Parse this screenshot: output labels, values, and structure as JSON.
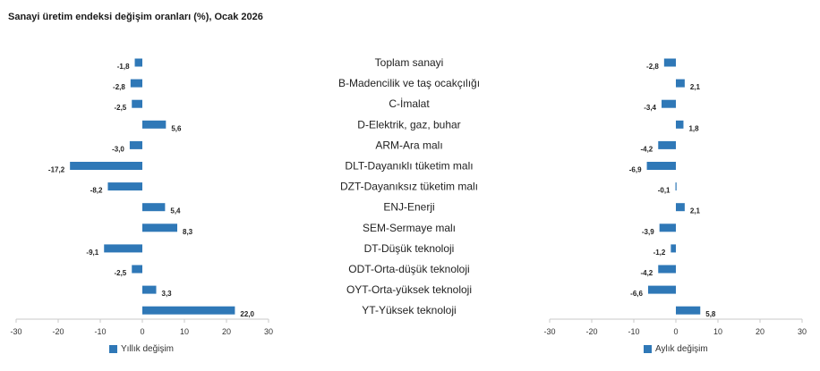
{
  "title": "Sanayi üretim endeksi değişim oranları (%), Ocak 2026",
  "categories": [
    "Toplam sanayi",
    "B-Madencilik ve taş ocakçılığı",
    "C-İmalat",
    "D-Elektrik, gaz, buhar",
    "ARM-Ara malı",
    "DLT-Dayanıklı tüketim malı",
    "DZT-Dayanıksız tüketim malı",
    "ENJ-Enerji",
    "SEM-Sermaye malı",
    "DT-Düşük teknoloji",
    "ODT-Orta-düşük teknoloji",
    "OYT-Orta-yüksek teknoloji",
    "YT-Yüksek teknoloji"
  ],
  "colors": {
    "bar": "#2f78b7",
    "axis": "#c8c8c8",
    "text": "#222222"
  },
  "chart_data": [
    {
      "type": "bar",
      "orientation": "horizontal",
      "categories": [
        "Toplam sanayi",
        "B-Madencilik ve taş ocakçılığı",
        "C-İmalat",
        "D-Elektrik, gaz, buhar",
        "ARM-Ara malı",
        "DLT-Dayanıklı tüketim malı",
        "DZT-Dayanıksız tüketim malı",
        "ENJ-Enerji",
        "SEM-Sermaye malı",
        "DT-Düşük teknoloji",
        "ODT-Orta-düşük teknoloji",
        "OYT-Orta-yüksek teknoloji",
        "YT-Yüksek teknoloji"
      ],
      "values": [
        -1.8,
        -2.8,
        -2.5,
        5.6,
        -3.0,
        -17.2,
        -8.2,
        5.4,
        8.3,
        -9.1,
        -2.5,
        3.3,
        22.0
      ],
      "value_labels": [
        "-1,8",
        "-2,8",
        "-2,5",
        "5,6",
        "-3,0",
        "-17,2",
        "-8,2",
        "5,4",
        "8,3",
        "-9,1",
        "-2,5",
        "3,3",
        "22,0"
      ],
      "series_name": "Yıllık değişim",
      "xlim": [
        -30,
        30
      ],
      "xticks": [
        -30,
        -20,
        -10,
        0,
        10,
        20,
        30
      ],
      "legend_position": "bottom-left",
      "grid": false
    },
    {
      "type": "bar",
      "orientation": "horizontal",
      "categories": [
        "Toplam sanayi",
        "B-Madencilik ve taş ocakçılığı",
        "C-İmalat",
        "D-Elektrik, gaz, buhar",
        "ARM-Ara malı",
        "DLT-Dayanıklı tüketim malı",
        "DZT-Dayanıksız tüketim malı",
        "ENJ-Enerji",
        "SEM-Sermaye malı",
        "DT-Düşük teknoloji",
        "ODT-Orta-düşük teknoloji",
        "OYT-Orta-yüksek teknoloji",
        "YT-Yüksek teknoloji"
      ],
      "values": [
        -2.8,
        2.1,
        -3.4,
        1.8,
        -4.2,
        -6.9,
        -0.1,
        2.1,
        -3.9,
        -1.2,
        -4.2,
        -6.6,
        5.8
      ],
      "value_labels": [
        "-2,8",
        "2,1",
        "-3,4",
        "1,8",
        "-4,2",
        "-6,9",
        "-0,1",
        "2,1",
        "-3,9",
        "-1,2",
        "-4,2",
        "-6,6",
        "5,8"
      ],
      "series_name": "Aylık değişim",
      "xlim": [
        -30,
        30
      ],
      "xticks": [
        -30,
        -20,
        -10,
        0,
        10,
        20,
        30
      ],
      "legend_position": "bottom-left",
      "grid": false
    }
  ]
}
